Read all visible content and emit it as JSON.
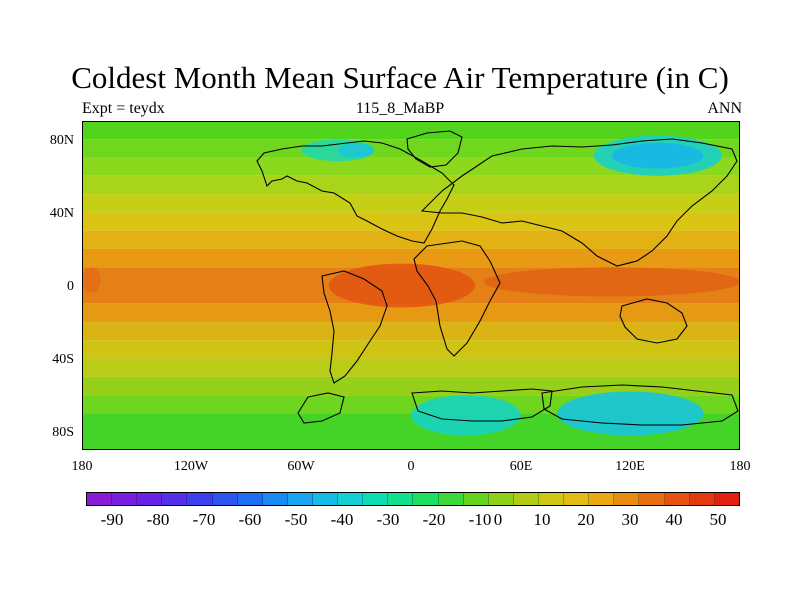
{
  "title": "Coldest Month Mean Surface Air Temperature (in C)",
  "subtitle_left": "Expt = teydx",
  "subtitle_center": "115_8_MaBP",
  "subtitle_right": "ANN",
  "lat_labels": [
    "80N",
    "40N",
    "0",
    "40S",
    "80S"
  ],
  "lon_labels": [
    "180",
    "120W",
    "60W",
    "0",
    "60E",
    "120E",
    "180"
  ],
  "colorbar": {
    "labels": [
      "-90",
      "-80",
      "-70",
      "-60",
      "-50",
      "-40",
      "-30",
      "-20",
      "-10",
      "0",
      "10",
      "20",
      "30",
      "40",
      "50"
    ],
    "colors": [
      "#8a1ad6",
      "#7a1ee0",
      "#6a22e6",
      "#5530ea",
      "#3d40ee",
      "#2a55f0",
      "#1f6ef2",
      "#1b8af0",
      "#18a4ee",
      "#14bce6",
      "#12d0d4",
      "#10dcb4",
      "#12e08a",
      "#1ee060",
      "#3ed83a",
      "#66d41e",
      "#8ed01a",
      "#b2cc16",
      "#cec814",
      "#e2bc12",
      "#eaa814",
      "#ea8c14",
      "#e86e12",
      "#e65212",
      "#e43810",
      "#e22010"
    ]
  },
  "map_fill": {
    "bands": [
      {
        "lat_top": 90,
        "lat_bottom": 80,
        "color": "#52d41c"
      },
      {
        "lat_top": 80,
        "lat_bottom": 70,
        "color": "#6fd81e"
      },
      {
        "lat_top": 70,
        "lat_bottom": 60,
        "color": "#8cd81c"
      },
      {
        "lat_top": 60,
        "lat_bottom": 50,
        "color": "#a8d41a"
      },
      {
        "lat_top": 50,
        "lat_bottom": 40,
        "color": "#c4cf16"
      },
      {
        "lat_top": 40,
        "lat_bottom": 30,
        "color": "#dac414"
      },
      {
        "lat_top": 30,
        "lat_bottom": 20,
        "color": "#e2b214"
      },
      {
        "lat_top": 20,
        "lat_bottom": 10,
        "color": "#e89a14"
      },
      {
        "lat_top": 10,
        "lat_bottom": -10,
        "color": "#e48016"
      },
      {
        "lat_top": -10,
        "lat_bottom": -20,
        "color": "#e69a14"
      },
      {
        "lat_top": -20,
        "lat_bottom": -30,
        "color": "#dab414"
      },
      {
        "lat_top": -30,
        "lat_bottom": -40,
        "color": "#cfc414"
      },
      {
        "lat_top": -40,
        "lat_bottom": -50,
        "color": "#b8cc18"
      },
      {
        "lat_top": -50,
        "lat_bottom": -60,
        "color": "#96d01a"
      },
      {
        "lat_top": -60,
        "lat_bottom": -70,
        "color": "#6ed61e"
      },
      {
        "lat_top": -70,
        "lat_bottom": -90,
        "color": "#44d428"
      }
    ],
    "regions": [
      {
        "name": "cold-north-america",
        "color": "#22d8a8",
        "lon_min": -60,
        "lon_max": -20,
        "lat_min": 68,
        "lat_max": 80
      },
      {
        "name": "cold-north-america-core",
        "color": "#1cc6d4",
        "lon_min": -40,
        "lon_max": -20,
        "lat_min": 70,
        "lat_max": 78
      },
      {
        "name": "cold-siberia",
        "color": "#1ad0c8",
        "lon_min": 100,
        "lon_max": 170,
        "lat_min": 60,
        "lat_max": 82
      },
      {
        "name": "cold-siberia-core",
        "color": "#18b6e8",
        "lon_min": 110,
        "lon_max": 160,
        "lat_min": 64,
        "lat_max": 78
      },
      {
        "name": "cold-antarctica-west",
        "color": "#18d4c0",
        "lon_min": 0,
        "lon_max": 60,
        "lat_min": -82,
        "lat_max": -60
      },
      {
        "name": "cold-antarctica-east",
        "color": "#18c4dc",
        "lon_min": 80,
        "lon_max": 160,
        "lat_min": -82,
        "lat_max": -58
      },
      {
        "name": "hot-africa",
        "color": "#e25612",
        "lon_min": -45,
        "lon_max": 35,
        "lat_min": -12,
        "lat_max": 12
      },
      {
        "name": "hot-indopacific",
        "color": "#e06414",
        "lon_min": 40,
        "lon_max": 180,
        "lat_min": -6,
        "lat_max": 10
      },
      {
        "name": "hot-east-pacific",
        "color": "#e26c14",
        "lon_min": -180,
        "lon_max": -170,
        "lat_min": -4,
        "lat_max": 10
      }
    ]
  }
}
